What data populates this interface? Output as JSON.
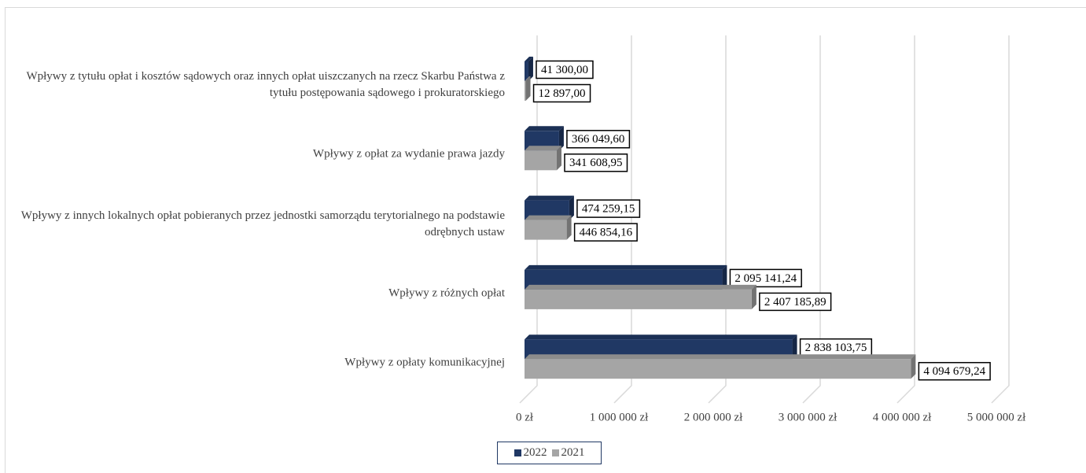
{
  "chart_data": {
    "type": "bar",
    "orientation": "horizontal",
    "categories": [
      "Wpływy z tytułu opłat i kosztów sądowych oraz innych opłat uiszczanych na rzecz Skarbu Państwa z tytułu postępowania sądowego i prokuratorskiego",
      "Wpływy z opłat za wydanie prawa jazdy",
      "Wpływy z innych lokalnych opłat pobieranych przez jednostki samorządu terytorialnego na podstawie odrębnych ustaw",
      "Wpływy z różnych opłat",
      "Wpływy z opłaty komunikacyjnej"
    ],
    "series": [
      {
        "name": "2022",
        "color": "#203864",
        "values": [
          41300.0,
          366049.6,
          474259.15,
          2095141.24,
          2838103.75
        ],
        "value_labels": [
          "41 300,00",
          "366 049,60",
          "474 259,15",
          "2 095 141,24",
          "2 838 103,75"
        ]
      },
      {
        "name": "2021",
        "color": "#a5a5a5",
        "values": [
          12897.0,
          341608.95,
          446854.16,
          2407185.89,
          4094679.24
        ],
        "value_labels": [
          "12 897,00",
          "341 608,95",
          "446 854,16",
          "2 407 185,89",
          "4 094 679,24"
        ]
      }
    ],
    "xlim": [
      0,
      5000000
    ],
    "xticks": [
      {
        "value": 0,
        "label": "0 zł"
      },
      {
        "value": 1000000,
        "label": "1 000 000 zł"
      },
      {
        "value": 2000000,
        "label": "2 000 000 zł"
      },
      {
        "value": 3000000,
        "label": "3 000 000 zł"
      },
      {
        "value": 4000000,
        "label": "4 000 000 zł"
      },
      {
        "value": 5000000,
        "label": "5 000 000 zł"
      }
    ],
    "grid": true,
    "legend": "bottom"
  }
}
